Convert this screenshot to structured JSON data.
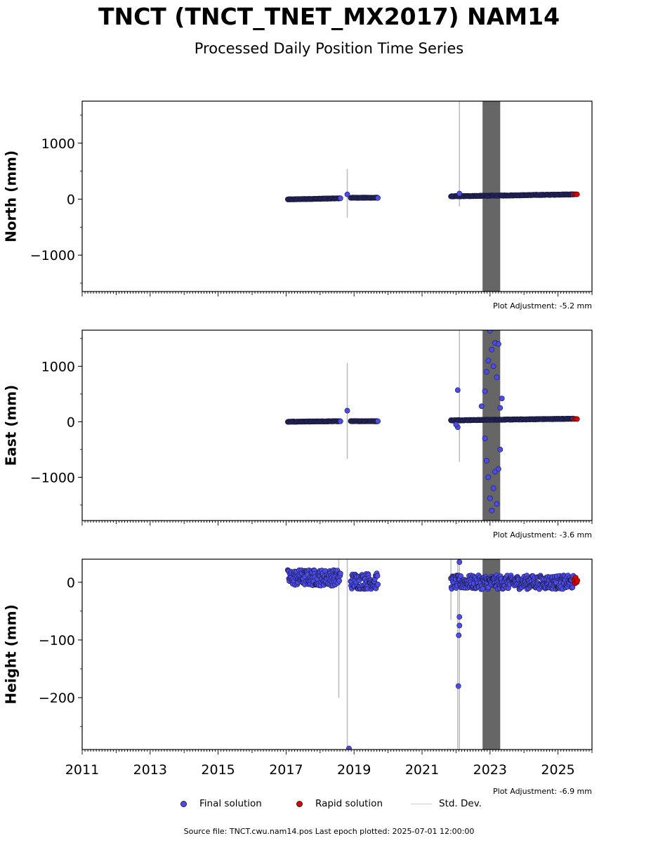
{
  "title": "TNCT (TNCT_TNET_MX2017) NAM14",
  "subtitle": "Processed Daily Position Time Series",
  "legend": {
    "final_label": "Final solution",
    "rapid_label": "Rapid solution",
    "std_label": "Std. Dev."
  },
  "footer": "Source file: TNCT.cwu.nam14.pos  Last epoch plotted: 2025-07-01 12:00:00",
  "colors": {
    "final": "#4b4bef",
    "rapid": "#e00000",
    "std_dev": "#cccccc",
    "shade": "#555555"
  },
  "chart_data": [
    {
      "type": "scatter",
      "ylabel": "North (mm)",
      "xlim": [
        2011,
        2026
      ],
      "ylim": [
        -1650,
        1750
      ],
      "yticks": [
        -1000,
        0,
        1000
      ],
      "ytick_labels": [
        "−1000",
        "0",
        "1000"
      ],
      "adjustment": "Plot Adjustment: -5.2 mm",
      "shaded_x": [
        2022.78,
        2023.3
      ],
      "series": [
        {
          "name": "Final solution",
          "segments": [
            {
              "x0": 2017.05,
              "x1": 2018.6,
              "y0": -5,
              "y1": 15,
              "noise": 4
            },
            {
              "x0": 2018.9,
              "x1": 2019.7,
              "y0": 25,
              "y1": 25,
              "noise": 4
            },
            {
              "x0": 2021.85,
              "x1": 2025.45,
              "y0": 50,
              "y1": 85,
              "noise": 5
            }
          ]
        },
        {
          "name": "Rapid solution",
          "points": [
            [
              2025.48,
              85
            ],
            [
              2025.52,
              88
            ],
            [
              2025.56,
              86
            ]
          ]
        }
      ],
      "outliers": [
        [
          2018.8,
          85
        ],
        [
          2022.1,
          100
        ]
      ],
      "std_dev": [
        [
          2018.8,
          -330,
          540
        ],
        [
          2022.1,
          -130,
          1750
        ]
      ]
    },
    {
      "type": "scatter",
      "ylabel": "East (mm)",
      "xlim": [
        2011,
        2026
      ],
      "ylim": [
        -1780,
        1650
      ],
      "yticks": [
        -1000,
        0,
        1000
      ],
      "ytick_labels": [
        "−1000",
        "0",
        "1000"
      ],
      "adjustment": "Plot Adjustment: -3.6 mm",
      "shaded_x": [
        2022.78,
        2023.3
      ],
      "series": [
        {
          "name": "Final solution",
          "segments": [
            {
              "x0": 2017.05,
              "x1": 2018.6,
              "y0": 0,
              "y1": 10,
              "noise": 4
            },
            {
              "x0": 2018.9,
              "x1": 2019.7,
              "y0": 10,
              "y1": 10,
              "noise": 4
            },
            {
              "x0": 2021.85,
              "x1": 2025.45,
              "y0": 25,
              "y1": 55,
              "noise": 5
            }
          ]
        },
        {
          "name": "Rapid solution",
          "points": [
            [
              2025.48,
              50
            ],
            [
              2025.52,
              52
            ],
            [
              2025.56,
              49
            ]
          ]
        }
      ],
      "outliers": [
        [
          2018.8,
          200
        ],
        [
          2022.05,
          570
        ],
        [
          2022.05,
          -100
        ],
        [
          2022.0,
          -50
        ],
        [
          2022.75,
          280
        ],
        [
          2022.85,
          550
        ],
        [
          2022.9,
          900
        ],
        [
          2022.95,
          1100
        ],
        [
          2023.0,
          1640
        ],
        [
          2023.05,
          1300
        ],
        [
          2023.15,
          1420
        ],
        [
          2023.25,
          1400
        ],
        [
          2023.1,
          1000
        ],
        [
          2023.2,
          800
        ],
        [
          2022.85,
          -300
        ],
        [
          2022.9,
          -700
        ],
        [
          2022.95,
          -1000
        ],
        [
          2023.0,
          -1380
        ],
        [
          2023.05,
          -1600
        ],
        [
          2023.1,
          -1200
        ],
        [
          2023.15,
          -900
        ],
        [
          2023.2,
          -1480
        ],
        [
          2023.25,
          -850
        ],
        [
          2023.3,
          -500
        ],
        [
          2023.35,
          420
        ],
        [
          2023.3,
          250
        ]
      ],
      "std_dev": [
        [
          2018.8,
          -670,
          1060
        ],
        [
          2022.1,
          -720,
          1650
        ]
      ]
    },
    {
      "type": "scatter",
      "ylabel": "Height (mm)",
      "xlim": [
        2011,
        2026
      ],
      "ylim": [
        -290,
        40
      ],
      "yticks": [
        -200,
        -100,
        0
      ],
      "ytick_labels": [
        "−200",
        "−100",
        "0"
      ],
      "xticks": [
        2011,
        2013,
        2015,
        2017,
        2019,
        2021,
        2023,
        2025
      ],
      "xtick_labels": [
        "2011",
        "2013",
        "2015",
        "2017",
        "2019",
        "2021",
        "2023",
        "2025"
      ],
      "adjustment": "Plot Adjustment: -6.9 mm",
      "shaded_x": [
        2022.78,
        2023.3
      ],
      "series": [
        {
          "name": "Final solution",
          "segments": [
            {
              "x0": 2017.05,
              "x1": 2018.6,
              "y0": 8,
              "y1": 8,
              "noise": 14
            },
            {
              "x0": 2018.9,
              "x1": 2019.7,
              "y0": 2,
              "y1": 2,
              "noise": 14
            },
            {
              "x0": 2021.85,
              "x1": 2025.45,
              "y0": 0,
              "y1": 0,
              "noise": 12
            }
          ]
        },
        {
          "name": "Rapid solution",
          "points": [
            [
              2025.48,
              4
            ],
            [
              2025.5,
              -2
            ],
            [
              2025.52,
              8
            ],
            [
              2025.55,
              0
            ],
            [
              2025.57,
              3
            ]
          ]
        }
      ],
      "outliers": [
        [
          2022.1,
          35
        ],
        [
          2022.1,
          -60
        ],
        [
          2022.1,
          -75
        ],
        [
          2022.08,
          -92
        ],
        [
          2022.07,
          -180
        ],
        [
          2018.85,
          -288
        ]
      ],
      "std_dev": [
        [
          2018.55,
          -200,
          40
        ],
        [
          2018.8,
          -290,
          40
        ],
        [
          2021.85,
          -65,
          40
        ],
        [
          2022.05,
          -290,
          40
        ],
        [
          2022.1,
          -290,
          40
        ]
      ]
    }
  ]
}
